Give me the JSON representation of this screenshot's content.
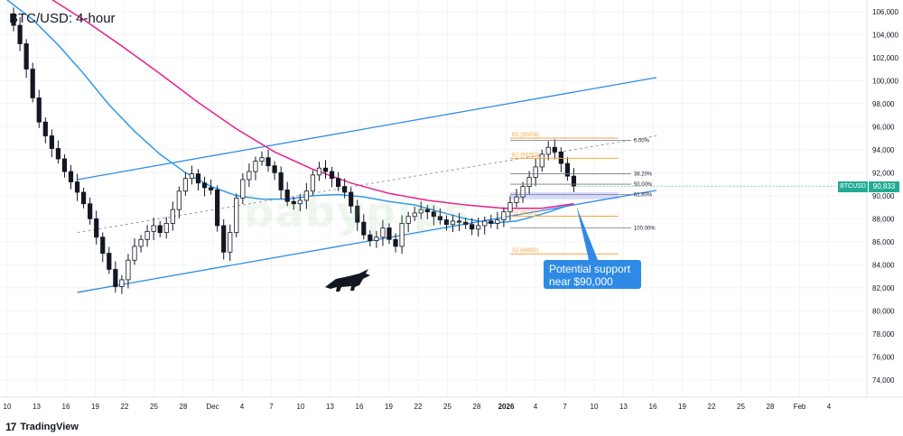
{
  "title": "BTC/USD: 4-hour",
  "watermark": "babypips",
  "callout": {
    "line1": "Potential support",
    "line2": "near $90,000"
  },
  "logo_text": "TradingView",
  "logo_mark": "17",
  "price_tag": {
    "symbol": "BTCUSD",
    "price": "90,833"
  },
  "colors": {
    "up": "#26a69a",
    "down": "#ef5350",
    "candle": "#131722",
    "ma_fast": "#2f9ae6",
    "ma_slow": "#e91e8c",
    "channel": "#2f8ae6",
    "fib_orange": "#f7a541",
    "callout": "#2f8ae6",
    "support_zone": "#b4bdf5"
  },
  "chart_data": {
    "type": "candlestick",
    "title": "BTC/USD: 4-hour",
    "y_axis": {
      "range": [
        72500,
        107000
      ],
      "ticks": [
        74000,
        76000,
        78000,
        80000,
        82000,
        84000,
        86000,
        88000,
        90000,
        92000,
        94000,
        96000,
        98000,
        100000,
        102000,
        104000,
        106000
      ],
      "tick_labels": [
        "74,000",
        "76,000",
        "78,000",
        "80,000",
        "82,000",
        "84,000",
        "86,000",
        "88,000",
        "90,000",
        "92,000",
        "94,000",
        "96,000",
        "98,000",
        "100,000",
        "102,000",
        "104,000",
        "106,000"
      ]
    },
    "x_axis": {
      "ticks": [
        "10",
        "13",
        "16",
        "19",
        "22",
        "25",
        "28",
        "Dec",
        "4",
        "7",
        "10",
        "13",
        "16",
        "19",
        "22",
        "25",
        "28",
        "2026",
        "4",
        "7",
        "10",
        "13",
        "16",
        "19",
        "22",
        "25",
        "28",
        "Feb",
        "4"
      ],
      "bold_ticks": [
        "2026"
      ]
    },
    "close_path": [
      [
        0,
        105800
      ],
      [
        1,
        104800
      ],
      [
        2,
        103200
      ],
      [
        3,
        101000
      ],
      [
        4,
        98500
      ],
      [
        5,
        96400
      ],
      [
        6,
        95200
      ],
      [
        7,
        94100
      ],
      [
        8,
        93200
      ],
      [
        9,
        92100
      ],
      [
        10,
        91200
      ],
      [
        11,
        90300
      ],
      [
        12,
        89300
      ],
      [
        13,
        88000
      ],
      [
        14,
        86400
      ],
      [
        15,
        85000
      ],
      [
        16,
        83600
      ],
      [
        17,
        82100
      ],
      [
        18,
        82700
      ],
      [
        19,
        84400
      ],
      [
        20,
        85600
      ],
      [
        21,
        86200
      ],
      [
        22,
        86900
      ],
      [
        23,
        87400
      ],
      [
        24,
        86800
      ],
      [
        25,
        87600
      ],
      [
        26,
        88800
      ],
      [
        27,
        90400
      ],
      [
        28,
        91500
      ],
      [
        29,
        91900
      ],
      [
        30,
        91100
      ],
      [
        31,
        90700
      ],
      [
        32,
        90500
      ],
      [
        33,
        87400
      ],
      [
        34,
        85100
      ],
      [
        35,
        86800
      ],
      [
        36,
        89800
      ],
      [
        37,
        91400
      ],
      [
        38,
        92100
      ],
      [
        39,
        93000
      ],
      [
        40,
        93300
      ],
      [
        41,
        92600
      ],
      [
        42,
        92000
      ],
      [
        43,
        90500
      ],
      [
        44,
        89500
      ],
      [
        45,
        89300
      ],
      [
        46,
        89600
      ],
      [
        47,
        90400
      ],
      [
        48,
        91800
      ],
      [
        49,
        92400
      ],
      [
        50,
        92100
      ],
      [
        51,
        91500
      ],
      [
        52,
        90800
      ],
      [
        53,
        90300
      ],
      [
        54,
        89100
      ],
      [
        55,
        87700
      ],
      [
        56,
        86600
      ],
      [
        57,
        86100
      ],
      [
        58,
        86400
      ],
      [
        59,
        87200
      ],
      [
        60,
        86200
      ],
      [
        61,
        85600
      ],
      [
        62,
        87600
      ],
      [
        63,
        88200
      ],
      [
        64,
        88500
      ],
      [
        65,
        88800
      ],
      [
        66,
        88600
      ],
      [
        67,
        88200
      ],
      [
        68,
        87900
      ],
      [
        69,
        87500
      ],
      [
        70,
        87800
      ],
      [
        71,
        87700
      ],
      [
        72,
        87500
      ],
      [
        73,
        87100
      ],
      [
        74,
        87400
      ],
      [
        75,
        87800
      ],
      [
        76,
        87600
      ],
      [
        77,
        87900
      ],
      [
        78,
        88600
      ],
      [
        79,
        89400
      ],
      [
        80,
        89900
      ],
      [
        81,
        90800
      ],
      [
        82,
        91600
      ],
      [
        83,
        92500
      ],
      [
        84,
        93600
      ],
      [
        85,
        94200
      ],
      [
        86,
        93800
      ],
      [
        87,
        92800
      ],
      [
        88,
        91700
      ],
      [
        89,
        90833
      ]
    ],
    "moving_averages": [
      {
        "name": "fast",
        "color": "#2f9ae6",
        "values": [
          [
            0,
            107000
          ],
          [
            4,
            105300
          ],
          [
            8,
            103100
          ],
          [
            12,
            100600
          ],
          [
            16,
            97900
          ],
          [
            20,
            95600
          ],
          [
            24,
            93600
          ],
          [
            28,
            92000
          ],
          [
            32,
            90800
          ],
          [
            36,
            90000
          ],
          [
            40,
            89700
          ],
          [
            44,
            89700
          ],
          [
            48,
            90000
          ],
          [
            52,
            90100
          ],
          [
            56,
            89900
          ],
          [
            60,
            89500
          ],
          [
            64,
            89200
          ],
          [
            68,
            88600
          ],
          [
            72,
            88000
          ],
          [
            76,
            87600
          ],
          [
            80,
            87800
          ],
          [
            84,
            88400
          ],
          [
            89,
            89300
          ]
        ]
      },
      {
        "name": "slow",
        "color": "#e91e8c",
        "values": [
          [
            0,
            109500
          ],
          [
            6,
            107400
          ],
          [
            12,
            105300
          ],
          [
            18,
            103000
          ],
          [
            24,
            100600
          ],
          [
            30,
            98100
          ],
          [
            36,
            95800
          ],
          [
            42,
            93800
          ],
          [
            48,
            92300
          ],
          [
            54,
            91100
          ],
          [
            60,
            90200
          ],
          [
            66,
            89600
          ],
          [
            72,
            89200
          ],
          [
            78,
            88900
          ],
          [
            84,
            88900
          ],
          [
            89,
            89300
          ]
        ]
      }
    ],
    "channel": {
      "upper": [
        [
          11,
          91400
        ],
        [
          89,
          99000
        ]
      ],
      "lower": [
        [
          11,
          81600
        ],
        [
          89,
          89200
        ]
      ],
      "mid_dashed": [
        [
          11,
          86800
        ],
        [
          89,
          94000
        ]
      ]
    },
    "pivot_levels": [
      {
        "label": "R2 (95004)",
        "price": 95004
      },
      {
        "label": "R1 (93252)",
        "price": 93252
      },
      {
        "label": "S1 (88221)",
        "price": 88221
      },
      {
        "label": "S2 (84950)",
        "price": 84950
      }
    ],
    "fibonacci": [
      {
        "label": "0.00%",
        "price": 94800
      },
      {
        "label": "38.20%",
        "price": 91900
      },
      {
        "label": "50.00%",
        "price": 91000
      },
      {
        "label": "61.80%",
        "price": 90100
      },
      {
        "label": "100.00%",
        "price": 87200
      }
    ],
    "support_zone": [
      89700,
      90300
    ],
    "last_price": 90833
  }
}
